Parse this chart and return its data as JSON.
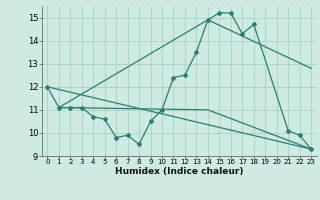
{
  "xlabel": "Humidex (Indice chaleur)",
  "ylabel": "",
  "xlim": [
    -0.5,
    23.5
  ],
  "ylim": [
    9,
    15.5
  ],
  "yticks": [
    9,
    10,
    11,
    12,
    13,
    14,
    15
  ],
  "xticks": [
    0,
    1,
    2,
    3,
    4,
    5,
    6,
    7,
    8,
    9,
    10,
    11,
    12,
    13,
    14,
    15,
    16,
    17,
    18,
    19,
    20,
    21,
    22,
    23
  ],
  "bg_color": "#cdeae3",
  "grid_color": "#afd4cb",
  "line_color": "#2e7d6e",
  "line1_x": [
    0,
    1,
    2,
    3,
    4,
    5,
    6,
    7,
    8,
    9,
    10,
    11,
    12,
    13,
    14,
    15,
    16,
    17,
    18,
    21,
    22,
    23
  ],
  "line1_y": [
    12.0,
    11.1,
    11.1,
    11.1,
    10.7,
    10.6,
    9.8,
    9.9,
    9.5,
    10.5,
    11.0,
    12.4,
    12.5,
    13.5,
    14.9,
    15.2,
    15.2,
    14.3,
    14.7,
    10.1,
    9.9,
    9.3
  ],
  "line2_x": [
    1,
    14,
    23
  ],
  "line2_y": [
    11.1,
    14.9,
    12.8
  ],
  "line3_x": [
    1,
    14,
    23
  ],
  "line3_y": [
    11.1,
    11.0,
    9.3
  ],
  "line4_x": [
    0,
    23
  ],
  "line4_y": [
    12.0,
    9.3
  ]
}
